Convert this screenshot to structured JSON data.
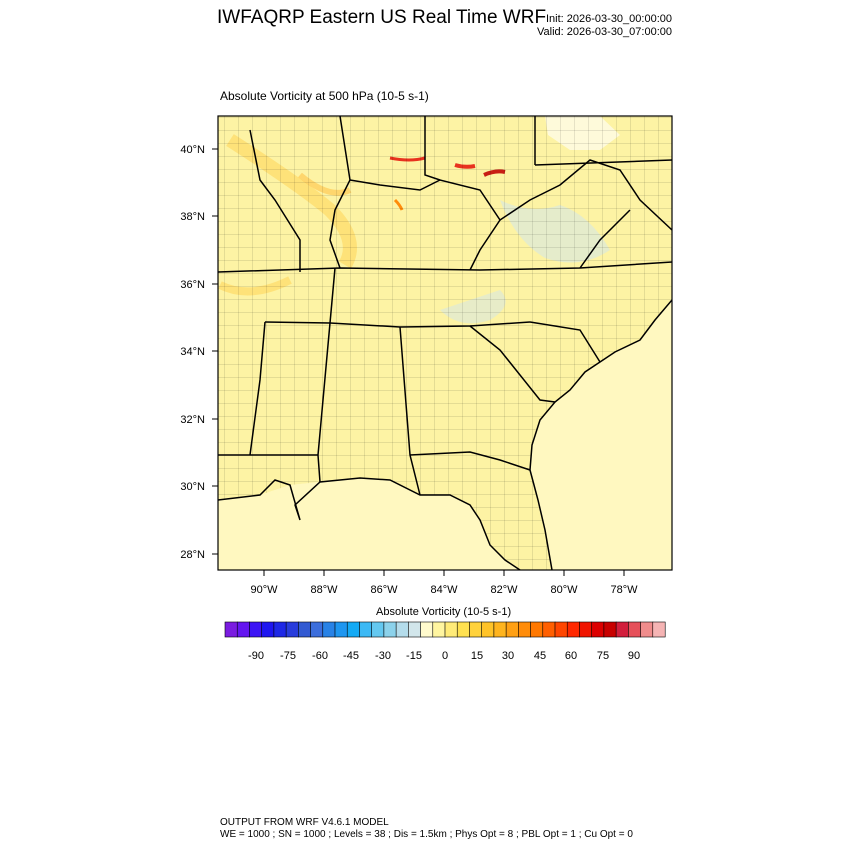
{
  "header": {
    "title": "IWFAQRP Eastern US Real Time WRF",
    "init": "Init: 2026-03-30_00:00:00",
    "valid": "Valid: 2026-03-30_07:00:00"
  },
  "plot": {
    "subtitle": "Absolute Vorticity at 500 hPa   (10-5 s-1)",
    "lat_ticks": [
      "40°N",
      "38°N",
      "36°N",
      "34°N",
      "32°N",
      "30°N",
      "28°N"
    ],
    "lon_ticks": [
      "90°W",
      "88°W",
      "86°W",
      "84°W",
      "82°W",
      "80°W",
      "78°W"
    ],
    "colors": {
      "land": "#fdf3a4",
      "ocean": "#fff8c0",
      "border": "#000000"
    }
  },
  "colorbar": {
    "title": "Absolute Vorticity  (10-5 s-1)",
    "labels": [
      "-90",
      "-75",
      "-60",
      "-45",
      "-30",
      "-15",
      "0",
      "15",
      "30",
      "45",
      "60",
      "75",
      "90"
    ],
    "colors": [
      "#7a1ce0",
      "#6416f0",
      "#3c14f5",
      "#1e16f0",
      "#1e28e6",
      "#283cdc",
      "#325ad2",
      "#3c6edc",
      "#2882e6",
      "#1e96f0",
      "#14aaf5",
      "#3cb9f5",
      "#64c8f0",
      "#8cd2eb",
      "#b4dceb",
      "#d2e6eb",
      "#fffacd",
      "#fff5a0",
      "#ffeb78",
      "#ffe150",
      "#ffd23c",
      "#ffc328",
      "#ffb41e",
      "#ffa014",
      "#ff8c0a",
      "#ff7800",
      "#ff5f00",
      "#ff4600",
      "#ff2800",
      "#f01400",
      "#dc0000",
      "#c80000",
      "#d21e3c",
      "#e6505a",
      "#f08c8c",
      "#f5b4b4"
    ]
  },
  "footer": {
    "line1": "OUTPUT FROM WRF V4.6.1 MODEL",
    "line2": "WE = 1000 ; SN = 1000 ; Levels = 38 ; Dis = 1.5km ; Phys Opt = 8 ; PBL Opt = 1 ; Cu Opt = 0"
  }
}
